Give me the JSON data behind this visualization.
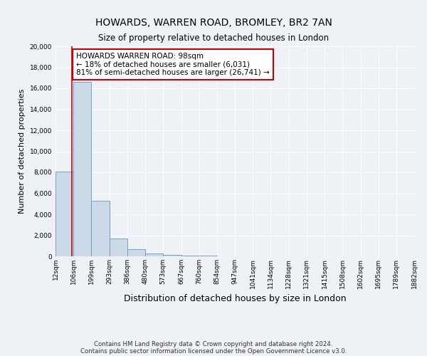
{
  "title": "HOWARDS, WARREN ROAD, BROMLEY, BR2 7AN",
  "subtitle": "Size of property relative to detached houses in London",
  "xlabel": "Distribution of detached houses by size in London",
  "ylabel": "Number of detached properties",
  "property_size": 98,
  "annotation_line1": "HOWARDS WARREN ROAD: 98sqm",
  "annotation_line2": "← 18% of detached houses are smaller (6,031)",
  "annotation_line3": "81% of semi-detached houses are larger (26,741) →",
  "footnote1": "Contains HM Land Registry data © Crown copyright and database right 2024.",
  "footnote2": "Contains public sector information licensed under the Open Government Licence v3.0.",
  "bar_color": "#ccd9e8",
  "bar_edge_color": "#6699bb",
  "vline_color": "#cc0000",
  "annotation_box_edge_color": "#cc0000",
  "annotation_box_face_color": "#ffffff",
  "bin_edges": [
    12,
    106,
    199,
    293,
    386,
    480,
    573,
    667,
    760,
    854,
    947,
    1041,
    1134,
    1228,
    1321,
    1415,
    1508,
    1602,
    1695,
    1789,
    1882
  ],
  "bin_labels": [
    "12sqm",
    "106sqm",
    "199sqm",
    "293sqm",
    "386sqm",
    "480sqm",
    "573sqm",
    "667sqm",
    "760sqm",
    "854sqm",
    "947sqm",
    "1041sqm",
    "1134sqm",
    "1228sqm",
    "1321sqm",
    "1415sqm",
    "1508sqm",
    "1602sqm",
    "1695sqm",
    "1789sqm",
    "1882sqm"
  ],
  "bar_heights": [
    8100,
    16600,
    5300,
    1700,
    700,
    300,
    150,
    80,
    50,
    30,
    20,
    10,
    8,
    5,
    4,
    3,
    2,
    2,
    1,
    1
  ],
  "ylim": [
    0,
    20000
  ],
  "yticks": [
    0,
    2000,
    4000,
    6000,
    8000,
    10000,
    12000,
    14000,
    16000,
    18000,
    20000
  ],
  "bg_color": "#eef2f7",
  "grid_color": "#ffffff",
  "title_fontsize": 10,
  "subtitle_fontsize": 8.5,
  "ylabel_fontsize": 8,
  "xlabel_fontsize": 9,
  "tick_fontsize": 6.5,
  "footnote_fontsize": 6.2
}
